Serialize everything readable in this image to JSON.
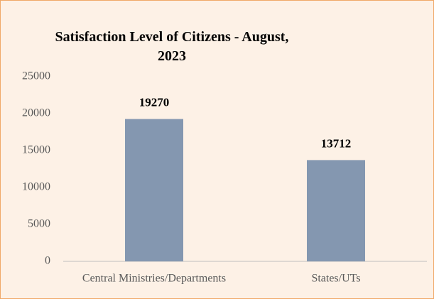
{
  "chart_data": {
    "type": "bar",
    "title": "Satisfaction Level of Citizens - August, 2023",
    "categories": [
      "Central Ministries/Departments",
      "States/UTs"
    ],
    "values": [
      19270,
      13712
    ],
    "color": "#8497b0",
    "ylim": [
      0,
      25000
    ],
    "yticks": [
      0,
      5000,
      10000,
      15000,
      20000,
      25000
    ],
    "grid": false
  }
}
